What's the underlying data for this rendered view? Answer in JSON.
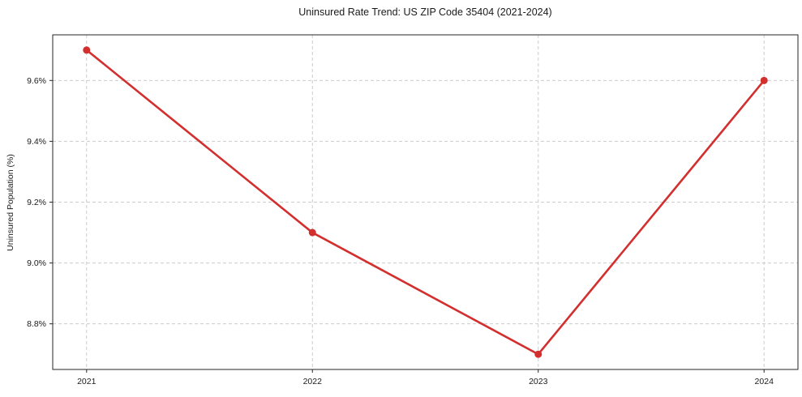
{
  "chart_data": {
    "type": "line",
    "title": "Uninsured Rate Trend: US ZIP Code 35404 (2021-2024)",
    "xlabel": "",
    "ylabel": "Uninsured Population (%)",
    "categories": [
      "2021",
      "2022",
      "2023",
      "2024"
    ],
    "x": [
      2021,
      2022,
      2023,
      2024
    ],
    "values": [
      9.7,
      9.1,
      8.7,
      9.6
    ],
    "yticks": [
      8.8,
      9.0,
      9.2,
      9.4,
      9.6
    ],
    "ytick_labels": [
      "8.8%",
      "9.0%",
      "9.2%",
      "9.4%",
      "9.6%"
    ],
    "ylim": [
      8.65,
      9.75
    ],
    "xlim": [
      2020.85,
      2024.15
    ],
    "grid": true,
    "grid_style": "dashed",
    "legend": "none",
    "marker": "circle",
    "colors": {
      "line": "#d32f2f",
      "marker": "#d32f2f",
      "grid": "#cccccc",
      "spine": "#262626",
      "text": "#1a1a1a"
    }
  }
}
